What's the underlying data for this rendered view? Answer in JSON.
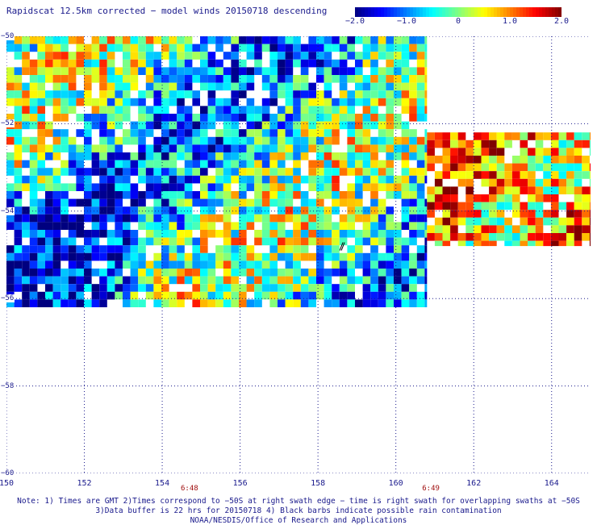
{
  "title": "Rapidscat 12.5km corrected − model winds 20150718 descending",
  "colorbar": {
    "min": -2.0,
    "max": 2.0,
    "tick_labels": [
      "−2.0",
      "−1.0",
      "0",
      "1.0",
      "2.0"
    ],
    "tick_values": [
      -2.0,
      -1.0,
      0,
      1.0,
      2.0
    ],
    "colors": [
      "#00007f",
      "#0000ff",
      "#0080ff",
      "#00ffff",
      "#80ff80",
      "#ffff00",
      "#ff8000",
      "#ff0000",
      "#7f0000"
    ]
  },
  "map": {
    "lon_range": [
      150,
      165
    ],
    "lat_range": [
      -50,
      -60
    ],
    "lat_labels": [
      "−50",
      "−52",
      "−54",
      "−56",
      "−58",
      "−60"
    ],
    "lat_values": [
      -50,
      -52,
      -54,
      -56,
      -58,
      -60
    ],
    "lon_labels": [
      "150",
      "152",
      "154",
      "156",
      "158",
      "160",
      "162",
      "164"
    ],
    "lon_values": [
      150,
      152,
      154,
      156,
      158,
      160,
      162,
      164
    ],
    "times": [
      {
        "label": "6:48",
        "lon": 154.7
      },
      {
        "label": "6:49",
        "lon": 160.9
      }
    ],
    "swaths": [
      {
        "lon_start": 150,
        "lon_end": 160.8,
        "lat_start": -50,
        "lat_end": -56.2
      },
      {
        "lon_start": 160.8,
        "lon_end": 165,
        "lat_start": -52.2,
        "lat_end": -54.8
      }
    ]
  },
  "notes": {
    "line1": "Note: 1) Times are GMT 2)Times correspond to −50S at right swath edge − time is right swath for overlapping swaths at −50S",
    "line2": "3)Data buffer is 22 hrs for 20150718 4) Black barbs indicate possible rain contamination",
    "line3": "NOAA/NESDIS/Office of Research and Applications"
  }
}
